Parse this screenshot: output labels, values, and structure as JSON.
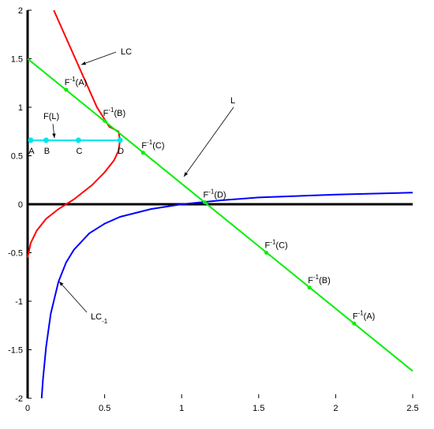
{
  "chart_data": {
    "type": "line",
    "xlim": [
      0,
      2.5
    ],
    "ylim": [
      -2,
      2
    ],
    "xticks": [
      0,
      0.5,
      1,
      1.5,
      2,
      2.5
    ],
    "yticks": [
      -2,
      -1.5,
      -1,
      -0.5,
      0,
      0.5,
      1,
      1.5,
      2
    ],
    "series": [
      {
        "color": "#ff0000",
        "x": [
          0.17,
          0.24,
          0.31,
          0.38,
          0.45,
          0.53,
          0.59,
          0.6,
          0.59,
          0.56,
          0.5,
          0.42,
          0.3,
          0.2,
          0.12,
          0.06,
          0.02,
          0
        ],
        "y": [
          2,
          1.75,
          1.5,
          1.25,
          1,
          0.8,
          0.75,
          0.66,
          0.55,
          0.45,
          0.33,
          0.2,
          0.05,
          -0.05,
          -0.15,
          -0.27,
          -0.4,
          -0.55
        ]
      },
      {
        "color": "#0000ff",
        "x": [
          0.091,
          0.1,
          0.12,
          0.15,
          0.2,
          0.25,
          0.3,
          0.4,
          0.5,
          0.6,
          0.8,
          1,
          1.25,
          1.5,
          2,
          2.5
        ],
        "y": [
          -2,
          -1.8,
          -1.47,
          -1.13,
          -0.8,
          -0.6,
          -0.47,
          -0.3,
          -0.2,
          -0.13,
          -0.05,
          0,
          0.04,
          0.07,
          0.1,
          0.12
        ]
      },
      {
        "color": "#00ee00",
        "x": [
          0,
          2.5
        ],
        "y": [
          1.5,
          -1.72
        ]
      },
      {
        "color": "#00e5ee",
        "x": [
          0.02,
          0.6
        ],
        "y": [
          0.66,
          0.66
        ]
      }
    ],
    "points": [
      {
        "color": "#00ee00",
        "x": 0.25,
        "y": 1.18,
        "label": {
          "base": "F",
          "sup": "-1",
          "rest": "(A)"
        }
      },
      {
        "color": "#00ee00",
        "x": 0.5,
        "y": 0.86,
        "label": {
          "base": "F",
          "sup": "-1",
          "rest": "(B)"
        }
      },
      {
        "color": "#00ee00",
        "x": 0.75,
        "y": 0.53,
        "label": {
          "base": "F",
          "sup": "-1",
          "rest": "(C)"
        }
      },
      {
        "color": "#00ee00",
        "x": 1.15,
        "y": 0.02,
        "label": {
          "base": "F",
          "sup": "-1",
          "rest": "(D)"
        }
      },
      {
        "color": "#00ee00",
        "x": 1.55,
        "y": -0.5,
        "label": {
          "base": "F",
          "sup": "-1",
          "rest": "(C)"
        }
      },
      {
        "color": "#00ee00",
        "x": 1.83,
        "y": -0.86,
        "label": {
          "base": "F",
          "sup": "-1",
          "rest": "(B)"
        }
      },
      {
        "color": "#00ee00",
        "x": 2.12,
        "y": -1.23,
        "label": {
          "base": "F",
          "sup": "-1",
          "rest": "(A)"
        }
      },
      {
        "color": "#00e5ee",
        "x": 0.02,
        "y": 0.66,
        "label": {
          "base": "A"
        }
      },
      {
        "color": "#00e5ee",
        "x": 0.12,
        "y": 0.66,
        "label": {
          "base": "B"
        }
      },
      {
        "color": "#00e5ee",
        "x": 0.33,
        "y": 0.66,
        "label": {
          "base": "C"
        }
      },
      {
        "color": "#00e5ee",
        "x": 0.6,
        "y": 0.66,
        "label": {
          "base": "D"
        }
      }
    ],
    "annotations": [
      {
        "base": "LC"
      },
      {
        "base": "L"
      },
      {
        "base": "F(L)"
      },
      {
        "base": "LC",
        "sub": "-1"
      }
    ]
  }
}
